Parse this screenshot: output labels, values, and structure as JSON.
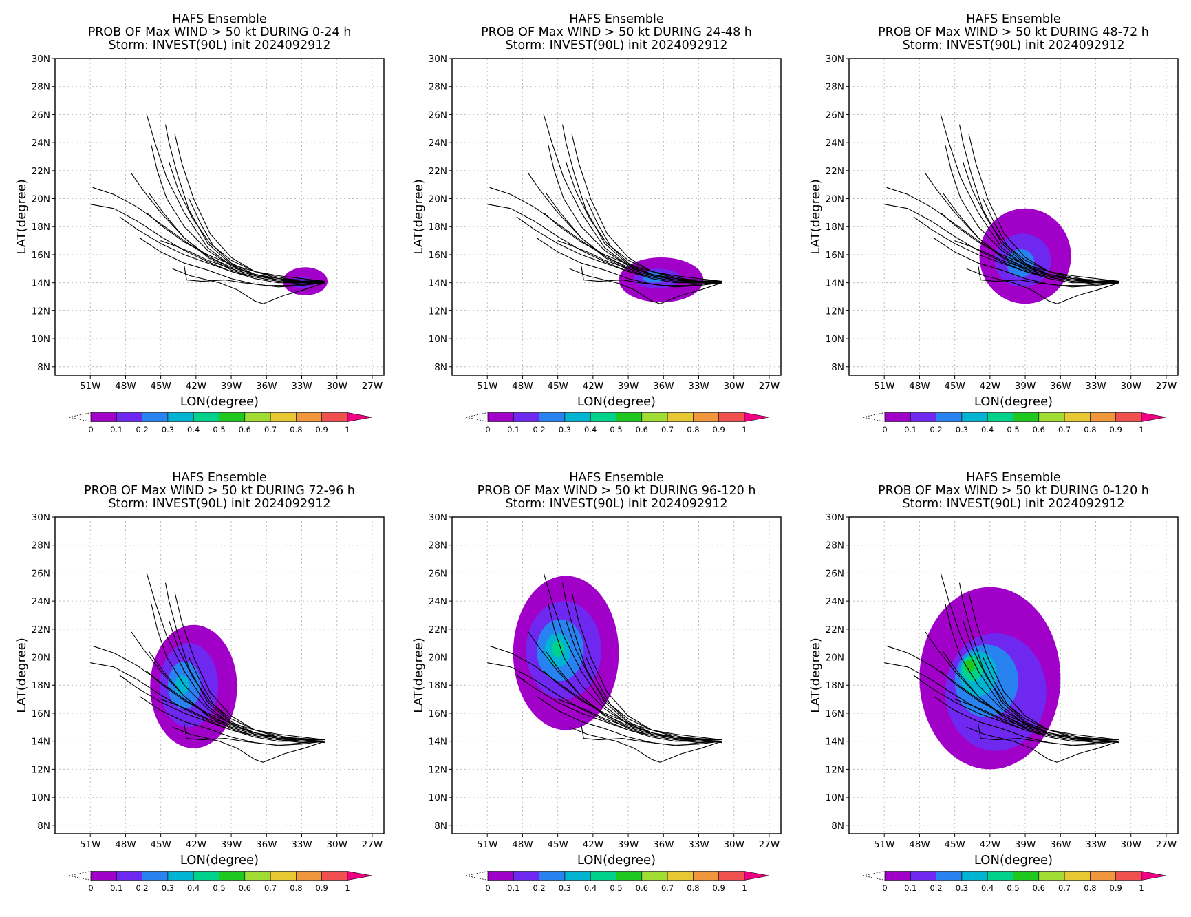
{
  "panels": [
    {
      "title": "HAFS Ensemble",
      "subtitle": "PROB OF Max WIND > 50 kt DURING  0-24 h",
      "storm": "Storm: INVEST(90L) init 2024092912"
    },
    {
      "title": "HAFS Ensemble",
      "subtitle": "PROB OF Max WIND > 50 kt DURING 24-48 h",
      "storm": "Storm: INVEST(90L) init 2024092912"
    },
    {
      "title": "HAFS Ensemble",
      "subtitle": "PROB OF Max WIND > 50 kt DURING 48-72 h",
      "storm": "Storm: INVEST(90L) init 2024092912"
    },
    {
      "title": "HAFS Ensemble",
      "subtitle": "PROB OF Max WIND > 50 kt DURING 72-96 h",
      "storm": "Storm: INVEST(90L) init 2024092912"
    },
    {
      "title": "HAFS Ensemble",
      "subtitle": "PROB OF Max WIND > 50 kt DURING 96-120 h",
      "storm": "Storm: INVEST(90L) init 2024092912"
    },
    {
      "title": "HAFS Ensemble",
      "subtitle": "PROB OF Max WIND > 50 kt DURING 0-120 h",
      "storm": "Storm: INVEST(90L) init 2024092912"
    }
  ],
  "axes": {
    "xlabel": "LON(degree)",
    "ylabel": "LAT(degree)",
    "lon_ticks": [
      "51W",
      "48W",
      "45W",
      "42W",
      "39W",
      "36W",
      "33W",
      "30W",
      "27W"
    ],
    "lat_ticks": [
      "30N",
      "28N",
      "26N",
      "24N",
      "22N",
      "20N",
      "18N",
      "16N",
      "14N",
      "12N",
      "10N",
      "8N"
    ],
    "lon_range": [
      -54,
      -26
    ],
    "lat_range": [
      7.4,
      30
    ]
  },
  "colorbar": {
    "labels": [
      "0",
      "0.1",
      "0.2",
      "0.3",
      "0.4",
      "0.5",
      "0.6",
      "0.7",
      "0.8",
      "0.9",
      "1"
    ],
    "colors": [
      "#a000c8",
      "#6e28f0",
      "#2882f0",
      "#00b4d2",
      "#00d28c",
      "#1ec81e",
      "#a0dc32",
      "#e6c832",
      "#f0963c",
      "#f05050",
      "#f00082"
    ]
  },
  "chart_data": {
    "type": "heatmap",
    "tracks_lon_lat": [
      [
        [
          -31,
          14.1
        ],
        [
          -33,
          14.2
        ],
        [
          -35,
          14.3
        ],
        [
          -37,
          14.6
        ],
        [
          -39,
          15.2
        ],
        [
          -41,
          16.5
        ],
        [
          -43,
          19.0
        ],
        [
          -44.5,
          21.5
        ],
        [
          -45.5,
          24.0
        ],
        [
          -46.2,
          26.0
        ]
      ],
      [
        [
          -31,
          14.0
        ],
        [
          -33,
          14.0
        ],
        [
          -35,
          14.2
        ],
        [
          -37,
          14.5
        ],
        [
          -39,
          15.3
        ],
        [
          -41,
          16.8
        ],
        [
          -42.6,
          19.2
        ],
        [
          -43.6,
          21.8
        ],
        [
          -44.3,
          24.0
        ],
        [
          -44.6,
          25.3
        ]
      ],
      [
        [
          -31,
          14.1
        ],
        [
          -33,
          14.1
        ],
        [
          -35,
          14.4
        ],
        [
          -37,
          14.8
        ],
        [
          -39,
          15.8
        ],
        [
          -40.8,
          17.5
        ],
        [
          -42.2,
          20.0
        ],
        [
          -43.2,
          22.5
        ],
        [
          -43.8,
          24.6
        ]
      ],
      [
        [
          -31,
          14.0
        ],
        [
          -33,
          14.0
        ],
        [
          -35,
          14.3
        ],
        [
          -37,
          14.6
        ],
        [
          -39,
          15.2
        ],
        [
          -41,
          16.3
        ],
        [
          -43,
          18.0
        ],
        [
          -44.5,
          20.0
        ],
        [
          -45.3,
          22.0
        ],
        [
          -45.8,
          23.8
        ]
      ],
      [
        [
          -31,
          14.0
        ],
        [
          -33,
          13.9
        ],
        [
          -35,
          14.1
        ],
        [
          -37,
          14.4
        ],
        [
          -39,
          14.9
        ],
        [
          -41,
          15.8
        ],
        [
          -43,
          17.2
        ],
        [
          -45,
          19.0
        ],
        [
          -46.5,
          20.6
        ],
        [
          -47.5,
          21.8
        ]
      ],
      [
        [
          -31,
          14.0
        ],
        [
          -33,
          14.1
        ],
        [
          -35,
          14.2
        ],
        [
          -37,
          14.5
        ],
        [
          -39,
          15.0
        ],
        [
          -41,
          15.9
        ],
        [
          -43,
          17.0
        ],
        [
          -45,
          18.2
        ],
        [
          -47,
          19.4
        ],
        [
          -49,
          20.3
        ],
        [
          -50.8,
          20.8
        ]
      ],
      [
        [
          -31,
          14.0
        ],
        [
          -33,
          14.0
        ],
        [
          -35,
          14.0
        ],
        [
          -37,
          14.3
        ],
        [
          -39,
          14.8
        ],
        [
          -41,
          15.5
        ],
        [
          -43,
          16.3
        ],
        [
          -45,
          17.3
        ],
        [
          -47,
          18.4
        ],
        [
          -49,
          19.3
        ],
        [
          -51,
          19.6
        ]
      ],
      [
        [
          -31,
          14.0
        ],
        [
          -33,
          14.0
        ],
        [
          -35,
          14.1
        ],
        [
          -37,
          14.4
        ],
        [
          -39,
          14.8
        ],
        [
          -41,
          15.4
        ],
        [
          -43,
          16.0
        ],
        [
          -45,
          16.8
        ],
        [
          -47,
          17.8
        ],
        [
          -48.5,
          18.7
        ]
      ],
      [
        [
          -31,
          14.0
        ],
        [
          -33,
          14.0
        ],
        [
          -35,
          14.2
        ],
        [
          -37,
          14.6
        ],
        [
          -39,
          15.1
        ],
        [
          -41,
          15.9
        ],
        [
          -43,
          17.2
        ],
        [
          -44.8,
          19.0
        ],
        [
          -46.0,
          20.4
        ]
      ],
      [
        [
          -31,
          14.0
        ],
        [
          -33,
          14.1
        ],
        [
          -35,
          14.3
        ],
        [
          -37,
          14.8
        ],
        [
          -39,
          15.6
        ],
        [
          -40.8,
          16.8
        ],
        [
          -42.3,
          18.6
        ],
        [
          -43.5,
          20.6
        ],
        [
          -44.3,
          22.6
        ]
      ],
      [
        [
          -31,
          14.0
        ],
        [
          -33,
          14.0
        ],
        [
          -35,
          14.2
        ],
        [
          -37,
          14.6
        ],
        [
          -39,
          15.4
        ],
        [
          -40.5,
          16.6
        ],
        [
          -41.6,
          18.2
        ],
        [
          -42.6,
          20.0
        ]
      ],
      [
        [
          -31,
          13.9
        ],
        [
          -33,
          14.1
        ],
        [
          -35,
          14.2
        ],
        [
          -37,
          14.5
        ],
        [
          -39,
          15.0
        ],
        [
          -41,
          15.6
        ],
        [
          -42.5,
          16.2
        ],
        [
          -44.0,
          16.7
        ],
        [
          -45.0,
          17.0
        ]
      ],
      [
        [
          -31,
          14.1
        ],
        [
          -33,
          14.3
        ],
        [
          -35,
          14.5
        ],
        [
          -37,
          14.8
        ],
        [
          -39,
          15.3
        ],
        [
          -41,
          16.0
        ],
        [
          -43,
          16.9
        ],
        [
          -45,
          18.1
        ],
        [
          -46.2,
          19.0
        ]
      ],
      [
        [
          -31.5,
          14.0
        ],
        [
          -34,
          13.8
        ],
        [
          -36,
          13.8
        ],
        [
          -38,
          14.0
        ],
        [
          -39.5,
          14.2
        ],
        [
          -41.5,
          14.1
        ],
        [
          -42.8,
          14.2
        ],
        [
          -43,
          15.2
        ]
      ],
      [
        [
          -31,
          14.0
        ],
        [
          -32.8,
          13.5
        ],
        [
          -34.5,
          13.1
        ],
        [
          -36.3,
          12.5
        ],
        [
          -37.0,
          12.7
        ],
        [
          -38.5,
          13.5
        ],
        [
          -40,
          14.0
        ],
        [
          -42.5,
          14.5
        ],
        [
          -44,
          15.0
        ]
      ],
      [
        [
          -31,
          14.0
        ],
        [
          -33,
          13.8
        ],
        [
          -35,
          13.7
        ],
        [
          -37,
          13.9
        ],
        [
          -39,
          14.3
        ],
        [
          -41,
          14.9
        ],
        [
          -43,
          15.4
        ],
        [
          -45,
          16.2
        ],
        [
          -46.8,
          17.2
        ]
      ]
    ],
    "probability_regions": [
      {
        "panel": 0,
        "regions": [
          {
            "center": [
              -32.7,
              14.1
            ],
            "radius": [
              1.9,
              1.0
            ],
            "level": 0.05
          },
          {
            "center": [
              -33.0,
              14.0
            ],
            "radius": [
              0.9,
              0.4
            ],
            "level": 0.15
          }
        ]
      },
      {
        "panel": 1,
        "regions": [
          {
            "center": [
              -36.2,
              14.2
            ],
            "radius": [
              3.6,
              1.6
            ],
            "level": 0.05
          },
          {
            "center": [
              -36.5,
              14.3
            ],
            "radius": [
              2.0,
              0.7
            ],
            "level": 0.15
          },
          {
            "center": [
              -36.8,
              14.4
            ],
            "radius": [
              1.0,
              0.4
            ],
            "level": 0.25
          }
        ]
      },
      {
        "panel": 2,
        "regions": [
          {
            "center": [
              -39.0,
              15.9
            ],
            "radius": [
              3.9,
              3.4
            ],
            "level": 0.05
          },
          {
            "center": [
              -39.2,
              15.6
            ],
            "radius": [
              2.4,
              1.9
            ],
            "level": 0.15
          },
          {
            "center": [
              -39.4,
              15.4
            ],
            "radius": [
              1.2,
              1.0
            ],
            "level": 0.25
          }
        ]
      },
      {
        "panel": 3,
        "regions": [
          {
            "center": [
              -42.2,
              17.9
            ],
            "radius": [
              3.7,
              4.4
            ],
            "level": 0.05
          },
          {
            "center": [
              -42.6,
              18.0
            ],
            "radius": [
              2.5,
              3.0
            ],
            "level": 0.15
          },
          {
            "center": [
              -43.0,
              18.0
            ],
            "radius": [
              1.4,
              1.7
            ],
            "level": 0.25
          },
          {
            "center": [
              -43.2,
              18.0
            ],
            "radius": [
              0.6,
              0.7
            ],
            "level": 0.35
          }
        ]
      },
      {
        "panel": 4,
        "regions": [
          {
            "center": [
              -44.3,
              20.3
            ],
            "radius": [
              4.5,
              5.5
            ],
            "level": 0.05
          },
          {
            "center": [
              -44.5,
              20.5
            ],
            "radius": [
              3.2,
              3.5
            ],
            "level": 0.15
          },
          {
            "center": [
              -44.8,
              20.5
            ],
            "radius": [
              2.0,
              2.2
            ],
            "level": 0.25
          },
          {
            "center": [
              -45.0,
              20.5
            ],
            "radius": [
              1.1,
              1.2
            ],
            "level": 0.35
          },
          {
            "center": [
              -45.0,
              20.6
            ],
            "radius": [
              0.5,
              0.6
            ],
            "level": 0.45
          }
        ]
      },
      {
        "panel": 5,
        "regions": [
          {
            "center": [
              -42.0,
              18.5
            ],
            "radius": [
              6.0,
              6.5
            ],
            "level": 0.05
          },
          {
            "center": [
              -41.5,
              17.5
            ],
            "radius": [
              4.3,
              4.2
            ],
            "level": 0.15
          },
          {
            "center": [
              -42.3,
              18.3
            ],
            "radius": [
              2.7,
              2.6
            ],
            "level": 0.25
          },
          {
            "center": [
              -43.0,
              18.8
            ],
            "radius": [
              1.6,
              1.6
            ],
            "level": 0.35
          },
          {
            "center": [
              -43.5,
              19.2
            ],
            "radius": [
              0.9,
              0.9
            ],
            "level": 0.45
          },
          {
            "center": [
              -43.7,
              19.4
            ],
            "radius": [
              0.45,
              0.45
            ],
            "level": 0.55
          }
        ]
      }
    ]
  }
}
